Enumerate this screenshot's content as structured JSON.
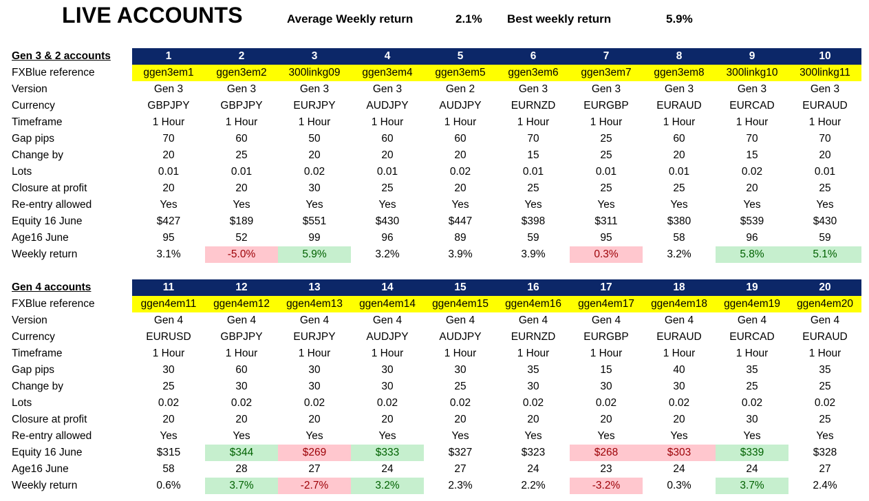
{
  "header": {
    "title": "LIVE ACCOUNTS",
    "avg_label": "Average Weekly return",
    "avg_value": "2.1%",
    "best_label": "Best weekly return",
    "best_value": "5.9%"
  },
  "colors": {
    "navy_header": "#0c2768",
    "yellow_ref": "#ffff00",
    "good_fill": "#c6efce",
    "good_text": "#006100",
    "bad_fill": "#ffc7ce",
    "bad_text": "#9c0006"
  },
  "row_labels": [
    "FXBlue reference",
    "Version",
    "Currency",
    "Timeframe",
    "Gap pips",
    "Change by",
    "Lots",
    "Closure at profit",
    "Re-entry allowed",
    "Equity  16 June",
    "Age16 June",
    "Weekly return"
  ],
  "row_labels_gen4": [
    "FXBlue reference",
    "Version",
    "Currency",
    "Timeframe",
    "Gap pips",
    "Change by",
    "Lots",
    "Closure at profit",
    "Re-entry allowed",
    "Equity 16 June",
    "Age16 June",
    "Weekly return"
  ],
  "sections": [
    {
      "title": "Gen 3 & 2 accounts",
      "numbers": [
        "1",
        "2",
        "3",
        "4",
        "5",
        "6",
        "7",
        "8",
        "9",
        "10"
      ],
      "rows": [
        [
          "ggen3em1",
          "ggen3em2",
          "300linkg09",
          "ggen3em4",
          "ggen3em5",
          "ggen3em6",
          "ggen3em7",
          "ggen3em8",
          "300linkg10",
          "300linkg11"
        ],
        [
          "Gen 3",
          "Gen 3",
          "Gen 3",
          "Gen 3",
          "Gen 2",
          "Gen 3",
          "Gen 3",
          "Gen 3",
          "Gen 3",
          "Gen 3"
        ],
        [
          "GBPJPY",
          "GBPJPY",
          "EURJPY",
          "AUDJPY",
          "AUDJPY",
          "EURNZD",
          "EURGBP",
          "EURAUD",
          "EURCAD",
          "EURAUD"
        ],
        [
          "1 Hour",
          "1 Hour",
          "1 Hour",
          "1 Hour",
          "1 Hour",
          "1 Hour",
          "1 Hour",
          "1 Hour",
          "1 Hour",
          "1 Hour"
        ],
        [
          "70",
          "60",
          "50",
          "60",
          "60",
          "70",
          "25",
          "60",
          "70",
          "70"
        ],
        [
          "20",
          "25",
          "20",
          "20",
          "20",
          "15",
          "25",
          "20",
          "15",
          "20"
        ],
        [
          "0.01",
          "0.01",
          "0.02",
          "0.01",
          "0.02",
          "0.01",
          "0.01",
          "0.01",
          "0.02",
          "0.01"
        ],
        [
          "20",
          "20",
          "30",
          "25",
          "20",
          "25",
          "25",
          "25",
          "20",
          "25"
        ],
        [
          "Yes",
          "Yes",
          "Yes",
          "Yes",
          "Yes",
          "Yes",
          "Yes",
          "Yes",
          "Yes",
          "Yes"
        ],
        [
          "$427",
          "$189",
          "$551",
          "$430",
          "$447",
          "$398",
          "$311",
          "$380",
          "$539",
          "$430"
        ],
        [
          "95",
          "52",
          "99",
          "96",
          "89",
          "59",
          "95",
          "58",
          "96",
          "59"
        ],
        [
          "3.1%",
          "-5.0%",
          "5.9%",
          "3.2%",
          "3.9%",
          "3.9%",
          "0.3%",
          "3.2%",
          "5.8%",
          "5.1%"
        ]
      ],
      "highlights": {
        "equity": [
          "",
          "",
          "",
          "",
          "",
          "",
          "",
          "",
          "",
          ""
        ],
        "weekly": [
          "",
          "bad",
          "good",
          "",
          "",
          "",
          "bad",
          "",
          "good",
          "good"
        ]
      }
    },
    {
      "title": "Gen 4 accounts",
      "numbers": [
        "11",
        "12",
        "13",
        "14",
        "15",
        "16",
        "17",
        "18",
        "19",
        "20"
      ],
      "rows": [
        [
          "ggen4em11",
          "ggen4em12",
          "ggen4em13",
          "ggen4em14",
          "ggen4em15",
          "ggen4em16",
          "ggen4em17",
          "ggen4em18",
          "ggen4em19",
          "ggen4em20"
        ],
        [
          "Gen 4",
          "Gen 4",
          "Gen 4",
          "Gen 4",
          "Gen 4",
          "Gen 4",
          "Gen 4",
          "Gen 4",
          "Gen 4",
          "Gen 4"
        ],
        [
          "EURUSD",
          "GBPJPY",
          "EURJPY",
          "AUDJPY",
          "AUDJPY",
          "EURNZD",
          "EURGBP",
          "EURAUD",
          "EURCAD",
          "EURAUD"
        ],
        [
          "1 Hour",
          "1 Hour",
          "1 Hour",
          "1 Hour",
          "1 Hour",
          "1 Hour",
          "1 Hour",
          "1 Hour",
          "1 Hour",
          "1 Hour"
        ],
        [
          "30",
          "60",
          "30",
          "30",
          "30",
          "35",
          "15",
          "40",
          "35",
          "35"
        ],
        [
          "25",
          "30",
          "30",
          "30",
          "25",
          "30",
          "30",
          "30",
          "25",
          "25"
        ],
        [
          "0.02",
          "0.02",
          "0.02",
          "0.02",
          "0.02",
          "0.02",
          "0.02",
          "0.02",
          "0.02",
          "0.02"
        ],
        [
          "20",
          "20",
          "20",
          "20",
          "20",
          "20",
          "20",
          "20",
          "30",
          "25"
        ],
        [
          "Yes",
          "Yes",
          "Yes",
          "Yes",
          "Yes",
          "Yes",
          "Yes",
          "Yes",
          "Yes",
          "Yes"
        ],
        [
          "$315",
          "$344",
          "$269",
          "$333",
          "$327",
          "$323",
          "$268",
          "$303",
          "$339",
          "$328"
        ],
        [
          "58",
          "28",
          "27",
          "24",
          "27",
          "24",
          "23",
          "24",
          "24",
          "27"
        ],
        [
          "0.6%",
          "3.7%",
          "-2.7%",
          "3.2%",
          "2.3%",
          "2.2%",
          "-3.2%",
          "0.3%",
          "3.7%",
          "2.4%"
        ]
      ],
      "highlights": {
        "equity": [
          "",
          "good",
          "bad",
          "good",
          "",
          "",
          "bad",
          "bad",
          "good",
          ""
        ],
        "weekly": [
          "",
          "good",
          "bad",
          "good",
          "",
          "",
          "bad",
          "",
          "good",
          ""
        ]
      }
    }
  ]
}
